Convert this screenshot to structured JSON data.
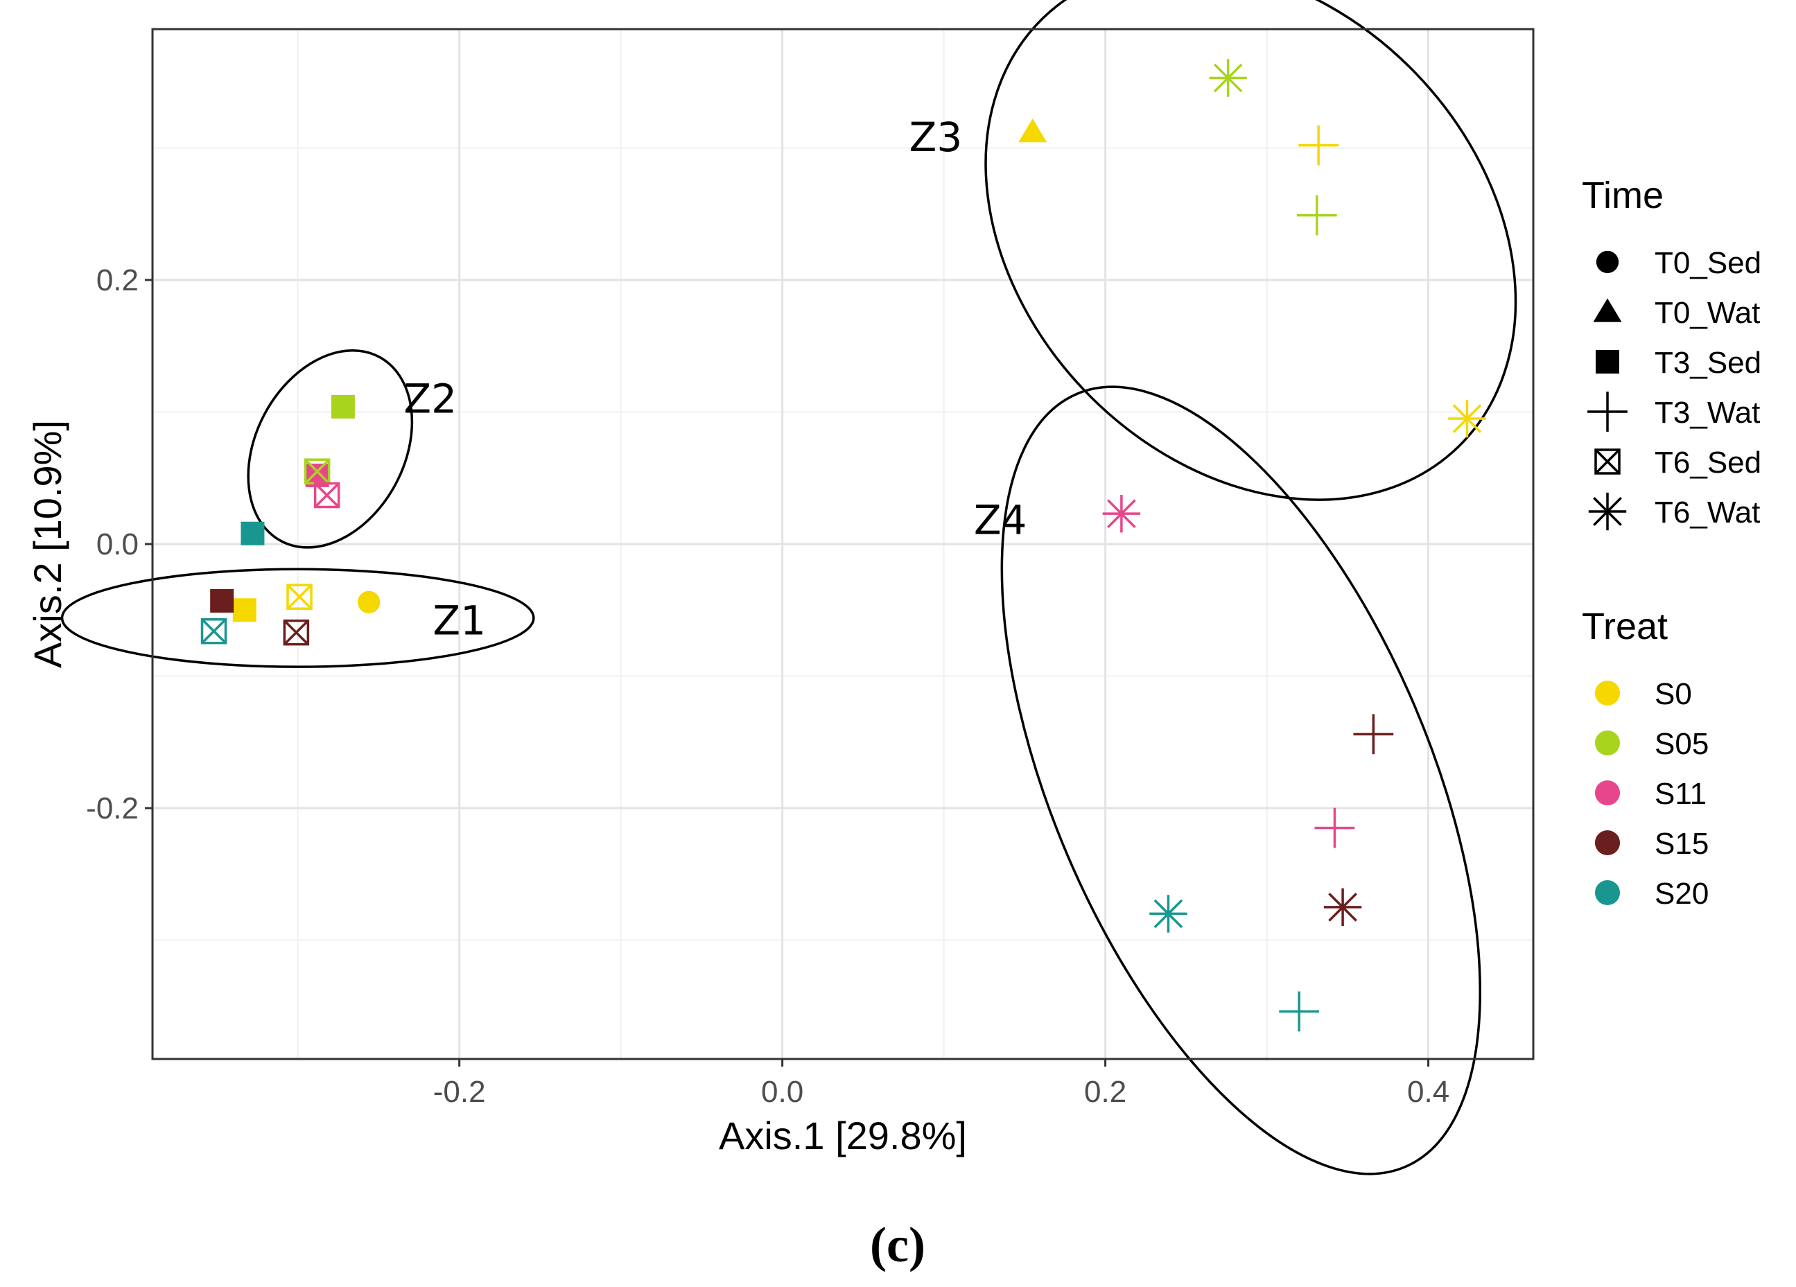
{
  "chart_data": {
    "type": "scatter",
    "xlabel": "Axis.1   [29.8%]",
    "ylabel": "Axis.2   [10.9%]",
    "xlim": [
      -0.39,
      0.465
    ],
    "ylim": [
      -0.39,
      0.39
    ],
    "xticks": [
      -0.2,
      0.0,
      0.2,
      0.4
    ],
    "xtick_labels": [
      "-0.2",
      "0.0",
      "0.2",
      "0.4"
    ],
    "yticks": [
      -0.2,
      0.0,
      0.2
    ],
    "ytick_labels": [
      "-0.2",
      "0.0",
      "0.2"
    ],
    "grid": true,
    "legend_position": "right",
    "caption": "(c)",
    "legends": [
      {
        "title": "Time",
        "entries": [
          {
            "label": "T0_Sed",
            "shape": "circle"
          },
          {
            "label": "T0_Wat",
            "shape": "triangle"
          },
          {
            "label": "T3_Sed",
            "shape": "square"
          },
          {
            "label": "T3_Wat",
            "shape": "plus"
          },
          {
            "label": "T6_Sed",
            "shape": "boxx"
          },
          {
            "label": "T6_Wat",
            "shape": "star"
          }
        ]
      },
      {
        "title": "Treat",
        "entries": [
          {
            "label": "S0",
            "color": "#f5d800"
          },
          {
            "label": "S05",
            "color": "#a8d41e"
          },
          {
            "label": "S11",
            "color": "#e8468a"
          },
          {
            "label": "S15",
            "color": "#6b1e1e"
          },
          {
            "label": "S20",
            "color": "#1a9691"
          }
        ]
      }
    ],
    "points": [
      {
        "x": -0.256,
        "y": -0.044,
        "time": "T0_Sed",
        "treat": "S0"
      },
      {
        "x": 0.155,
        "y": 0.312,
        "time": "T0_Wat",
        "treat": "S0"
      },
      {
        "x": -0.333,
        "y": -0.05,
        "time": "T3_Sed",
        "treat": "S0"
      },
      {
        "x": -0.347,
        "y": -0.043,
        "time": "T3_Sed",
        "treat": "S15"
      },
      {
        "x": -0.328,
        "y": 0.008,
        "time": "T3_Sed",
        "treat": "S20"
      },
      {
        "x": -0.272,
        "y": 0.104,
        "time": "T3_Sed",
        "treat": "S05"
      },
      {
        "x": -0.288,
        "y": 0.052,
        "time": "T3_Sed",
        "treat": "S11"
      },
      {
        "x": 0.332,
        "y": 0.302,
        "time": "T3_Wat",
        "treat": "S0"
      },
      {
        "x": 0.331,
        "y": 0.249,
        "time": "T3_Wat",
        "treat": "S05"
      },
      {
        "x": 0.366,
        "y": -0.144,
        "time": "T3_Wat",
        "treat": "S15"
      },
      {
        "x": 0.342,
        "y": -0.215,
        "time": "T3_Wat",
        "treat": "S11"
      },
      {
        "x": 0.32,
        "y": -0.354,
        "time": "T3_Wat",
        "treat": "S20"
      },
      {
        "x": -0.352,
        "y": -0.066,
        "time": "T6_Sed",
        "treat": "S20"
      },
      {
        "x": -0.301,
        "y": -0.067,
        "time": "T6_Sed",
        "treat": "S15"
      },
      {
        "x": -0.299,
        "y": -0.04,
        "time": "T6_Sed",
        "treat": "S0"
      },
      {
        "x": -0.288,
        "y": 0.055,
        "time": "T6_Sed",
        "treat": "S05"
      },
      {
        "x": -0.282,
        "y": 0.037,
        "time": "T6_Sed",
        "treat": "S11"
      },
      {
        "x": 0.276,
        "y": 0.353,
        "time": "T6_Wat",
        "treat": "S05"
      },
      {
        "x": 0.424,
        "y": 0.095,
        "time": "T6_Wat",
        "treat": "S0"
      },
      {
        "x": 0.21,
        "y": 0.023,
        "time": "T6_Wat",
        "treat": "S11"
      },
      {
        "x": 0.239,
        "y": -0.28,
        "time": "T6_Wat",
        "treat": "S20"
      },
      {
        "x": 0.347,
        "y": -0.275,
        "time": "T6_Wat",
        "treat": "S15"
      }
    ],
    "clusters": [
      {
        "label": "Z1",
        "cx": -0.3,
        "cy": -0.056,
        "rx": 0.146,
        "ry": 0.037,
        "rotate": 0,
        "label_x": -0.2,
        "label_y": -0.058
      },
      {
        "label": "Z2",
        "cx": -0.28,
        "cy": 0.072,
        "rx": 0.046,
        "ry": 0.079,
        "rotate": 28,
        "label_x": -0.218,
        "label_y": 0.11
      },
      {
        "label": "Z3",
        "cx": 0.29,
        "cy": 0.236,
        "rx": 0.142,
        "ry": 0.226,
        "rotate": -44,
        "label_x": 0.095,
        "label_y": 0.308
      },
      {
        "label": "Z4",
        "cx": 0.284,
        "cy": -0.179,
        "rx": 0.117,
        "ry": 0.318,
        "rotate": -23,
        "label_x": 0.135,
        "label_y": 0.018
      }
    ]
  }
}
